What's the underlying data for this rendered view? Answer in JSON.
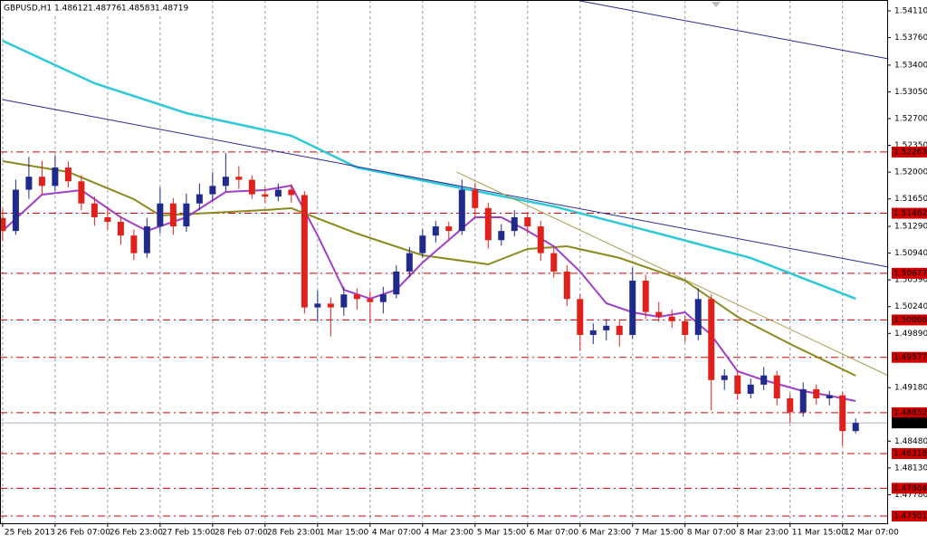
{
  "chart_data": {
    "type": "candlestick",
    "symbol": "GBPUSD,H1",
    "up_color": "#1f2a8a",
    "down_color": "#e0201b",
    "xlim": [
      -0.2,
      67.4
    ],
    "ylim": [
      1.47406,
      1.54252
    ],
    "grid": true,
    "xticks": [
      {
        "value": 0,
        "label": "25 Feb 2013"
      },
      {
        "value": 4,
        "label": "26 Feb 07:00"
      },
      {
        "value": 8,
        "label": "26 Feb 23:00"
      },
      {
        "value": 12,
        "label": "27 Feb 15:00"
      },
      {
        "value": 16,
        "label": "28 Feb 07:00"
      },
      {
        "value": 20,
        "label": "28 Feb 23:00"
      },
      {
        "value": 24,
        "label": "1 Mar 15:00"
      },
      {
        "value": 28,
        "label": "4 Mar 07:00"
      },
      {
        "value": 32,
        "label": "4 Mar 23:00"
      },
      {
        "value": 36,
        "label": "5 Mar 15:00"
      },
      {
        "value": 40,
        "label": "6 Mar 07:00"
      },
      {
        "value": 44,
        "label": "6 Mar 23:00"
      },
      {
        "value": 48,
        "label": "7 Mar 15:00"
      },
      {
        "value": 52,
        "label": "8 Mar 07:00"
      },
      {
        "value": 56,
        "label": "8 Mar 23:00"
      },
      {
        "value": 60,
        "label": "11 Mar 15:00"
      },
      {
        "value": 64,
        "label": "12 Mar 07:00"
      }
    ],
    "yticks": [
      {
        "value": 1.5411,
        "label": "1.54110"
      },
      {
        "value": 1.5376,
        "label": "1.53760"
      },
      {
        "value": 1.534,
        "label": "1.53400"
      },
      {
        "value": 1.5305,
        "label": "1.53050"
      },
      {
        "value": 1.527,
        "label": "1.52700"
      },
      {
        "value": 1.5235,
        "label": "1.52350"
      },
      {
        "value": 1.52,
        "label": "1.52000"
      },
      {
        "value": 1.5165,
        "label": "1.51650"
      },
      {
        "value": 1.5129,
        "label": "1.51290"
      },
      {
        "value": 1.5094,
        "label": "1.50940"
      },
      {
        "value": 1.5059,
        "label": "1.50590"
      },
      {
        "value": 1.5024,
        "label": "1.50240"
      },
      {
        "value": 1.4989,
        "label": "1.49890"
      },
      {
        "value": 1.4918,
        "label": "1.49180"
      },
      {
        "value": 1.4848,
        "label": "1.48480"
      },
      {
        "value": 1.4813,
        "label": "1.48130"
      },
      {
        "value": 1.4778,
        "label": "1.47780"
      }
    ],
    "levels": [
      1.52263,
      1.51462,
      1.50677,
      1.50066,
      1.49577,
      1.48852,
      1.48318,
      1.47864,
      1.47501
    ],
    "level_color": "#d00000",
    "candles": [
      [
        1.514,
        1.5152,
        1.511,
        1.5123
      ],
      [
        1.5123,
        1.519,
        1.5118,
        1.5177
      ],
      [
        1.5177,
        1.522,
        1.5165,
        1.5194
      ],
      [
        1.5194,
        1.5215,
        1.517,
        1.5182
      ],
      [
        1.5182,
        1.5222,
        1.5175,
        1.5206
      ],
      [
        1.5206,
        1.5214,
        1.518,
        1.5188
      ],
      [
        1.5188,
        1.5196,
        1.515,
        1.5159
      ],
      [
        1.5159,
        1.5168,
        1.513,
        1.5141
      ],
      [
        1.5141,
        1.5155,
        1.5125,
        1.5135
      ],
      [
        1.5135,
        1.5142,
        1.5105,
        1.5117
      ],
      [
        1.5117,
        1.5125,
        1.5085,
        1.5094
      ],
      [
        1.5094,
        1.514,
        1.5088,
        1.5129
      ],
      [
        1.5129,
        1.518,
        1.512,
        1.5159
      ],
      [
        1.5159,
        1.5166,
        1.5118,
        1.5129
      ],
      [
        1.5129,
        1.5172,
        1.5122,
        1.5159
      ],
      [
        1.5159,
        1.5185,
        1.515,
        1.5171
      ],
      [
        1.5171,
        1.52,
        1.5162,
        1.5182
      ],
      [
        1.5182,
        1.5225,
        1.5175,
        1.5194
      ],
      [
        1.5194,
        1.5208,
        1.5178,
        1.519
      ],
      [
        1.519,
        1.5196,
        1.5165,
        1.5171
      ],
      [
        1.5171,
        1.518,
        1.516,
        1.5168
      ],
      [
        1.5168,
        1.5185,
        1.5162,
        1.5177
      ],
      [
        1.5177,
        1.5184,
        1.516,
        1.517
      ],
      [
        1.517,
        1.5175,
        1.5015,
        1.5023
      ],
      [
        1.5023,
        1.5045,
        1.5005,
        1.5028
      ],
      [
        1.5028,
        1.5036,
        1.4985,
        1.5023
      ],
      [
        1.5023,
        1.505,
        1.5012,
        1.504
      ],
      [
        1.504,
        1.5048,
        1.502,
        1.5034
      ],
      [
        1.5034,
        1.5044,
        1.5002,
        1.503
      ],
      [
        1.503,
        1.505,
        1.5015,
        1.504
      ],
      [
        1.504,
        1.5078,
        1.5035,
        1.507
      ],
      [
        1.507,
        1.5102,
        1.5062,
        1.5094
      ],
      [
        1.5094,
        1.5125,
        1.5088,
        1.5117
      ],
      [
        1.5117,
        1.5136,
        1.5108,
        1.5129
      ],
      [
        1.5129,
        1.5135,
        1.5112,
        1.5123
      ],
      [
        1.5123,
        1.519,
        1.5118,
        1.5177
      ],
      [
        1.5177,
        1.5186,
        1.5142,
        1.5153
      ],
      [
        1.5153,
        1.516,
        1.51,
        1.5111
      ],
      [
        1.5111,
        1.5132,
        1.5104,
        1.5123
      ],
      [
        1.5123,
        1.515,
        1.5116,
        1.5141
      ],
      [
        1.5141,
        1.5148,
        1.512,
        1.5129
      ],
      [
        1.5129,
        1.5136,
        1.5084,
        1.5094
      ],
      [
        1.5094,
        1.5102,
        1.5062,
        1.507
      ],
      [
        1.507,
        1.5078,
        1.5025,
        1.5034
      ],
      [
        1.5034,
        1.504,
        1.4966,
        1.4987
      ],
      [
        1.4987,
        1.5002,
        1.4975,
        1.4993
      ],
      [
        1.4993,
        1.5008,
        1.498,
        1.4999
      ],
      [
        1.4999,
        1.5006,
        1.4972,
        1.4987
      ],
      [
        1.4987,
        1.5075,
        1.4982,
        1.5058
      ],
      [
        1.5058,
        1.5066,
        1.5008,
        1.5017
      ],
      [
        1.5017,
        1.503,
        1.5004,
        1.5011
      ],
      [
        1.5011,
        1.502,
        1.4996,
        1.5005
      ],
      [
        1.5005,
        1.5012,
        1.4978,
        1.4987
      ],
      [
        1.4987,
        1.5048,
        1.498,
        1.5034
      ],
      [
        1.5034,
        1.504,
        1.4888,
        1.4928
      ],
      [
        1.4928,
        1.4942,
        1.4915,
        1.4934
      ],
      [
        1.4934,
        1.494,
        1.4902,
        1.491
      ],
      [
        1.491,
        1.493,
        1.4904,
        1.4922
      ],
      [
        1.4922,
        1.4945,
        1.4915,
        1.4934
      ],
      [
        1.4934,
        1.494,
        1.4895,
        1.4904
      ],
      [
        1.4904,
        1.491,
        1.4872,
        1.4886
      ],
      [
        1.4886,
        1.4925,
        1.488,
        1.4916
      ],
      [
        1.4916,
        1.4922,
        1.4896,
        1.4904
      ],
      [
        1.4904,
        1.4914,
        1.4895,
        1.4908
      ],
      [
        1.4908,
        1.4912,
        1.4842,
        1.48612
      ],
      [
        1.48612,
        1.48776,
        1.48583,
        1.48719
      ]
    ],
    "lines": [
      {
        "color": "#2ec9d6",
        "width": 2.5,
        "x": [
          0,
          7,
          14,
          22,
          27,
          35,
          42,
          50,
          57,
          65
        ],
        "values": [
          1.53719,
          1.53162,
          1.52772,
          1.52476,
          1.52061,
          1.51788,
          1.51552,
          1.51196,
          1.50877,
          1.50344
        ]
      },
      {
        "color": "#8c8a1e",
        "width": 2,
        "x": [
          0,
          5,
          10,
          12,
          20,
          22,
          27,
          32,
          37,
          40,
          43,
          47,
          52,
          56,
          60,
          65
        ],
        "values": [
          1.52144,
          1.52002,
          1.51646,
          1.51433,
          1.51504,
          1.51528,
          1.51196,
          1.50912,
          1.50794,
          1.50995,
          1.5103,
          1.50877,
          1.5058,
          1.50107,
          1.49752,
          1.49337
        ]
      },
      {
        "color": "#a040c8",
        "width": 2,
        "x": [
          0,
          3,
          6,
          9,
          11,
          14,
          17,
          20,
          22,
          24,
          26,
          28,
          30,
          32,
          34,
          36,
          38,
          40,
          42,
          44,
          46,
          48,
          50,
          52,
          54,
          56,
          58,
          61,
          63,
          65
        ],
        "values": [
          1.51232,
          1.51706,
          1.51765,
          1.51409,
          1.51232,
          1.51409,
          1.51741,
          1.51765,
          1.51824,
          1.51173,
          1.50462,
          1.50344,
          1.50462,
          1.50817,
          1.51113,
          1.51409,
          1.51409,
          1.51232,
          1.5103,
          1.50699,
          1.50284,
          1.50166,
          1.50107,
          1.50166,
          1.4987,
          1.49396,
          1.49278,
          1.49135,
          1.49076,
          1.49005
        ]
      },
      {
        "color": "#2a2a9a",
        "width": 1,
        "x": [
          44,
          67.5
        ],
        "values": [
          1.5424,
          1.53482
        ]
      },
      {
        "color": "#2a2a9a",
        "width": 1,
        "x": [
          0,
          67.5
        ],
        "values": [
          1.52949,
          1.50758
        ]
      },
      {
        "color": "#a8a050",
        "width": 1,
        "x": [
          34.6,
          67.5
        ],
        "values": [
          1.52002,
          1.49337
        ]
      }
    ]
  }
}
